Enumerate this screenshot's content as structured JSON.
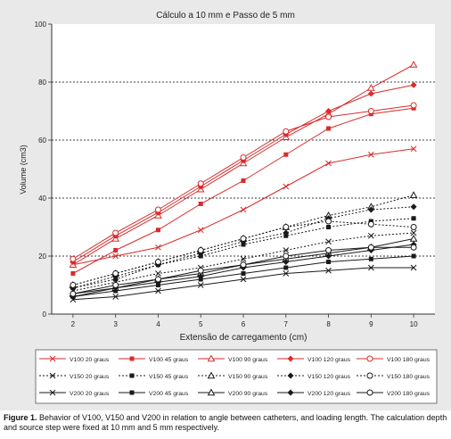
{
  "figure": {
    "caption_label": "Figure 1.",
    "caption_text": "Behavior of V100, V150 and V200 in relation to angle between catheters, and loading length. The calculation depth and source step were fixed at 10 mm and 5 mm respectively."
  },
  "chart_data": {
    "type": "line",
    "title": "Cálculo a 10 mm e Passo de 5 mm",
    "xlabel": "Extensão de carregamento (cm)",
    "ylabel": "Volume (cm3)",
    "x": [
      2,
      3,
      4,
      5,
      6,
      7,
      8,
      9,
      10
    ],
    "xlim": [
      1.5,
      10.5
    ],
    "ylim": [
      0,
      100
    ],
    "yticks": [
      0,
      20,
      40,
      60,
      80,
      100
    ],
    "grid": "dashed horizontal at 20, 40, 60, 80",
    "legend_position": "bottom",
    "colors": {
      "V100": "#d92b2b",
      "V150": "#1a1a1a",
      "V200": "#1a1a1a",
      "grid": "#000000",
      "panel": "#e9e9e9"
    },
    "series": [
      {
        "name": "V100 20 graus",
        "group": "V100",
        "marker": "x",
        "values": [
          17,
          20,
          23,
          29,
          36,
          44,
          52,
          55,
          57
        ]
      },
      {
        "name": "V100 45 graus",
        "group": "V100",
        "marker": "square",
        "values": [
          14,
          22,
          29,
          38,
          46,
          55,
          64,
          69,
          71
        ]
      },
      {
        "name": "V100 90 graus",
        "group": "V100",
        "marker": "triangle",
        "values": [
          17,
          26,
          34,
          43,
          52,
          61,
          69,
          78,
          86
        ]
      },
      {
        "name": "V100 120 graus",
        "group": "V100",
        "marker": "diamond",
        "values": [
          18,
          27,
          35,
          44,
          53,
          62,
          70,
          76,
          79
        ]
      },
      {
        "name": "V100 180 graus",
        "group": "V100",
        "marker": "circle",
        "values": [
          19,
          28,
          36,
          45,
          54,
          63,
          68,
          70,
          72
        ]
      },
      {
        "name": "V150 20 graus",
        "group": "V150",
        "marker": "x",
        "values": [
          8,
          11,
          14,
          16,
          19,
          22,
          25,
          27,
          28
        ]
      },
      {
        "name": "V150 45 graus",
        "group": "V150",
        "marker": "square",
        "values": [
          9,
          12,
          17,
          20,
          24,
          27,
          30,
          32,
          33
        ]
      },
      {
        "name": "V150 90 graus",
        "group": "V150",
        "marker": "triangle",
        "values": [
          10,
          14,
          18,
          22,
          26,
          30,
          34,
          37,
          41
        ]
      },
      {
        "name": "V150 120 graus",
        "group": "V150",
        "marker": "diamond",
        "values": [
          9,
          13,
          17,
          21,
          25,
          28,
          33,
          36,
          37
        ]
      },
      {
        "name": "V150 180 graus",
        "group": "V150",
        "marker": "circle",
        "values": [
          10,
          14,
          18,
          22,
          26,
          30,
          32,
          31,
          30
        ]
      },
      {
        "name": "V200 20 graus",
        "group": "V200",
        "marker": "x",
        "values": [
          5,
          6,
          8,
          10,
          12,
          14,
          15,
          16,
          16
        ]
      },
      {
        "name": "V200 45 graus",
        "group": "V200",
        "marker": "square",
        "values": [
          6,
          8,
          10,
          12,
          14,
          16,
          18,
          19,
          20
        ]
      },
      {
        "name": "V200 90 graus",
        "group": "V200",
        "marker": "triangle",
        "values": [
          7,
          9,
          12,
          14,
          17,
          19,
          21,
          23,
          26
        ]
      },
      {
        "name": "V200 120 graus",
        "group": "V200",
        "marker": "diamond",
        "values": [
          6,
          9,
          11,
          13,
          16,
          18,
          20,
          22,
          24
        ]
      },
      {
        "name": "V200 180 graus",
        "group": "V200",
        "marker": "circle",
        "values": [
          7,
          10,
          12,
          15,
          17,
          20,
          22,
          23,
          23
        ]
      }
    ]
  }
}
